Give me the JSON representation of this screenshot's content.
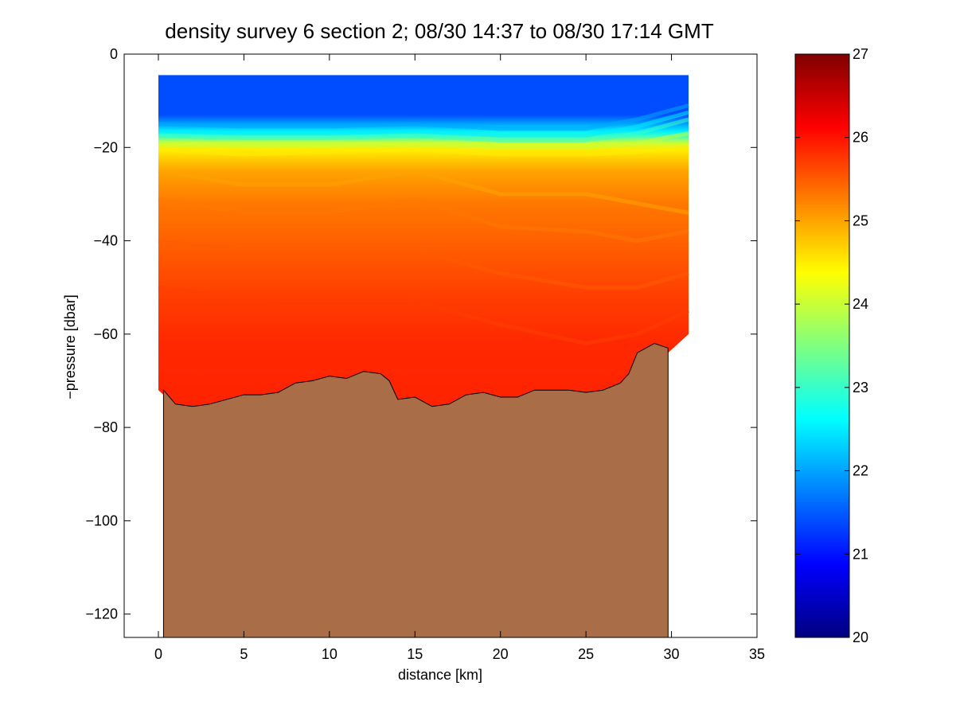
{
  "chart_data": {
    "type": "heatmap",
    "title": "density survey 6 section 2; 08/30 14:37 to 08/30 17:14 GMT",
    "xlabel": "distance [km]",
    "ylabel": "−pressure [dbar]",
    "xlim": [
      -2,
      35
    ],
    "ylim": [
      -125,
      0
    ],
    "xticks": [
      0,
      5,
      10,
      15,
      20,
      25,
      30,
      35
    ],
    "xtick_labels": [
      "0",
      "5",
      "10",
      "15",
      "20",
      "25",
      "30",
      "35"
    ],
    "yticks": [
      0,
      -20,
      -40,
      -60,
      -80,
      -100,
      -120
    ],
    "ytick_labels": [
      "0",
      "−20",
      "−40",
      "−60",
      "−80",
      "−100",
      "−120"
    ],
    "colorbar": {
      "colormap": "jet",
      "range": [
        20,
        27
      ],
      "ticks": [
        20,
        21,
        22,
        23,
        24,
        25,
        26,
        27
      ],
      "tick_labels": [
        "20",
        "21",
        "22",
        "23",
        "24",
        "25",
        "26",
        "27"
      ]
    },
    "data_coverage": {
      "x_range": [
        0,
        31
      ],
      "top_depth": -4.5
    },
    "isopycnal_depths": [
      {
        "density": 22.0,
        "x": [
          0,
          5,
          10,
          15,
          20,
          25,
          28,
          31
        ],
        "y": [
          -15,
          -15.5,
          -15.5,
          -15,
          -16,
          -16,
          -14,
          -11
        ]
      },
      {
        "density": 22.5,
        "x": [
          0,
          5,
          10,
          15,
          20,
          25,
          28,
          31
        ],
        "y": [
          -16.5,
          -17,
          -17,
          -16.5,
          -17.5,
          -17.5,
          -15.5,
          -12.5
        ]
      },
      {
        "density": 23.0,
        "x": [
          0,
          5,
          10,
          15,
          20,
          25,
          28,
          31
        ],
        "y": [
          -17.5,
          -18,
          -18,
          -17.5,
          -18.5,
          -18.5,
          -17,
          -14
        ]
      },
      {
        "density": 24.0,
        "x": [
          0,
          5,
          10,
          15,
          20,
          25,
          28,
          31
        ],
        "y": [
          -19,
          -19.5,
          -19.5,
          -19,
          -20,
          -20,
          -19,
          -17
        ]
      },
      {
        "density": 24.5,
        "x": [
          0,
          5,
          10,
          15,
          20,
          25,
          28,
          31
        ],
        "y": [
          -20.5,
          -21.5,
          -21,
          -20.5,
          -21.5,
          -21.5,
          -21,
          -20
        ]
      },
      {
        "density": 25.0,
        "x": [
          0,
          5,
          10,
          15,
          20,
          25,
          28,
          31
        ],
        "y": [
          -25,
          -28,
          -28,
          -25,
          -30,
          -30,
          -32,
          -34
        ]
      },
      {
        "density": 25.3,
        "x": [
          0,
          5,
          10,
          15,
          20,
          25,
          28,
          31
        ],
        "y": [
          -31,
          -34,
          -34,
          -31,
          -37,
          -38,
          -40,
          -38
        ]
      },
      {
        "density": 25.5,
        "x": [
          0,
          5,
          10,
          15,
          20,
          25,
          28,
          31
        ],
        "y": [
          -40,
          -42,
          -42,
          -42,
          -47,
          -50,
          -50,
          -47
        ]
      },
      {
        "density": 25.7,
        "x": [
          0,
          5,
          10,
          15,
          20,
          25,
          28,
          31
        ],
        "y": [
          -50,
          -52,
          -53,
          -53,
          -58,
          -62,
          -60,
          -55
        ]
      }
    ],
    "density_profile": [
      {
        "depth": 0,
        "value": 21.4
      },
      {
        "depth": -13,
        "value": 21.4
      },
      {
        "depth": -15,
        "value": 22.0
      },
      {
        "depth": -16.5,
        "value": 22.5
      },
      {
        "depth": -17.5,
        "value": 23.0
      },
      {
        "depth": -19,
        "value": 24.0
      },
      {
        "depth": -20.5,
        "value": 24.5
      },
      {
        "depth": -25,
        "value": 25.0
      },
      {
        "depth": -32,
        "value": 25.3
      },
      {
        "depth": -42,
        "value": 25.5
      },
      {
        "depth": -52,
        "value": 25.7
      },
      {
        "depth": -62,
        "value": 25.85
      },
      {
        "depth": -80,
        "value": 25.9
      }
    ],
    "bottom_profile": {
      "x": [
        0.3,
        1.0,
        2.0,
        3.0,
        4.0,
        5.0,
        6.0,
        7.0,
        8.0,
        9.0,
        10.0,
        11.0,
        12.0,
        13.0,
        13.5,
        14.0,
        15.0,
        16.0,
        17.0,
        18.0,
        19.0,
        20.0,
        21.0,
        22.0,
        23.0,
        24.0,
        25.0,
        26.0,
        27.0,
        27.5,
        28.0,
        29.0,
        29.8
      ],
      "y": [
        -72,
        -75,
        -75.5,
        -75,
        -74,
        -73,
        -73,
        -72.5,
        -70.5,
        -70,
        -69,
        -69.5,
        -68,
        -68.5,
        -70,
        -74,
        -73.5,
        -75.5,
        -75,
        -73,
        -72.5,
        -73.5,
        -73.5,
        -72,
        -72,
        -72,
        -72.5,
        -72,
        -70.5,
        -68.5,
        -64,
        -62,
        -63
      ]
    },
    "fill_colors": {
      "bottom": "#a96d47",
      "missing": "#ffffff"
    }
  }
}
